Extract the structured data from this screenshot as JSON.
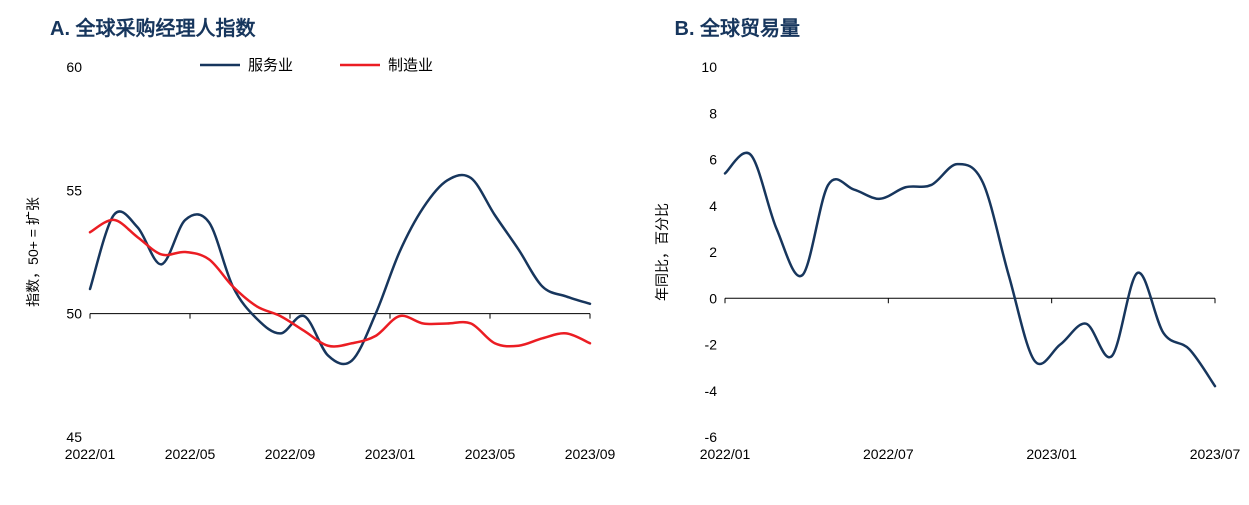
{
  "panelA": {
    "title": "A. 全球采购经理人指数",
    "title_color": "#17365d",
    "title_fontsize": 20,
    "type": "line",
    "background_color": "#ffffff",
    "axis_color": "#000000",
    "axis_line_width": 1,
    "ylabel": "指数，50+ = 扩张",
    "label_fontsize": 14,
    "ylim": [
      45,
      60
    ],
    "yticks": [
      45,
      50,
      55,
      60
    ],
    "x_categories": [
      "2022/01",
      "2022/05",
      "2022/09",
      "2023/01",
      "2023/05",
      "2023/09"
    ],
    "x_points_count": 22,
    "legend": {
      "position": "top",
      "items": [
        {
          "label": "服务业",
          "color": "#17365d"
        },
        {
          "label": "制造业",
          "color": "#eb1d23"
        }
      ]
    },
    "series": [
      {
        "name": "服务业",
        "color": "#17365d",
        "line_width": 2.5,
        "values": [
          51.0,
          54.0,
          53.5,
          52.0,
          53.8,
          53.7,
          51.1,
          49.8,
          49.2,
          49.9,
          48.3,
          48.1,
          50.0,
          52.5,
          54.3,
          55.4,
          55.5,
          54.0,
          52.6,
          51.1,
          50.7,
          50.4
        ]
      },
      {
        "name": "制造业",
        "color": "#eb1d23",
        "line_width": 2.5,
        "values": [
          53.3,
          53.8,
          53.1,
          52.4,
          52.5,
          52.2,
          51.1,
          50.3,
          49.9,
          49.3,
          48.7,
          48.8,
          49.1,
          49.9,
          49.6,
          49.6,
          49.6,
          48.8,
          48.7,
          49.0,
          49.2,
          48.8
        ]
      }
    ]
  },
  "panelB": {
    "title": "B. 全球贸易量",
    "title_color": "#17365d",
    "title_fontsize": 20,
    "type": "line",
    "background_color": "#ffffff",
    "axis_color": "#000000",
    "axis_line_width": 1,
    "ylabel": "年同比，百分比",
    "label_fontsize": 14,
    "ylim": [
      -6,
      10
    ],
    "yticks": [
      -6,
      -4,
      -2,
      0,
      2,
      4,
      6,
      8,
      10
    ],
    "x_categories": [
      "2022/01",
      "2022/07",
      "2023/01",
      "2023/07"
    ],
    "x_points_count": 20,
    "series": [
      {
        "name": "贸易量",
        "color": "#17365d",
        "line_width": 2.5,
        "values": [
          5.4,
          6.2,
          3.0,
          1.0,
          4.9,
          4.7,
          4.3,
          4.8,
          4.9,
          5.8,
          5.0,
          1.0,
          -2.7,
          -2.0,
          -1.1,
          -2.5,
          1.1,
          -1.5,
          -2.2,
          -3.8
        ]
      }
    ]
  }
}
